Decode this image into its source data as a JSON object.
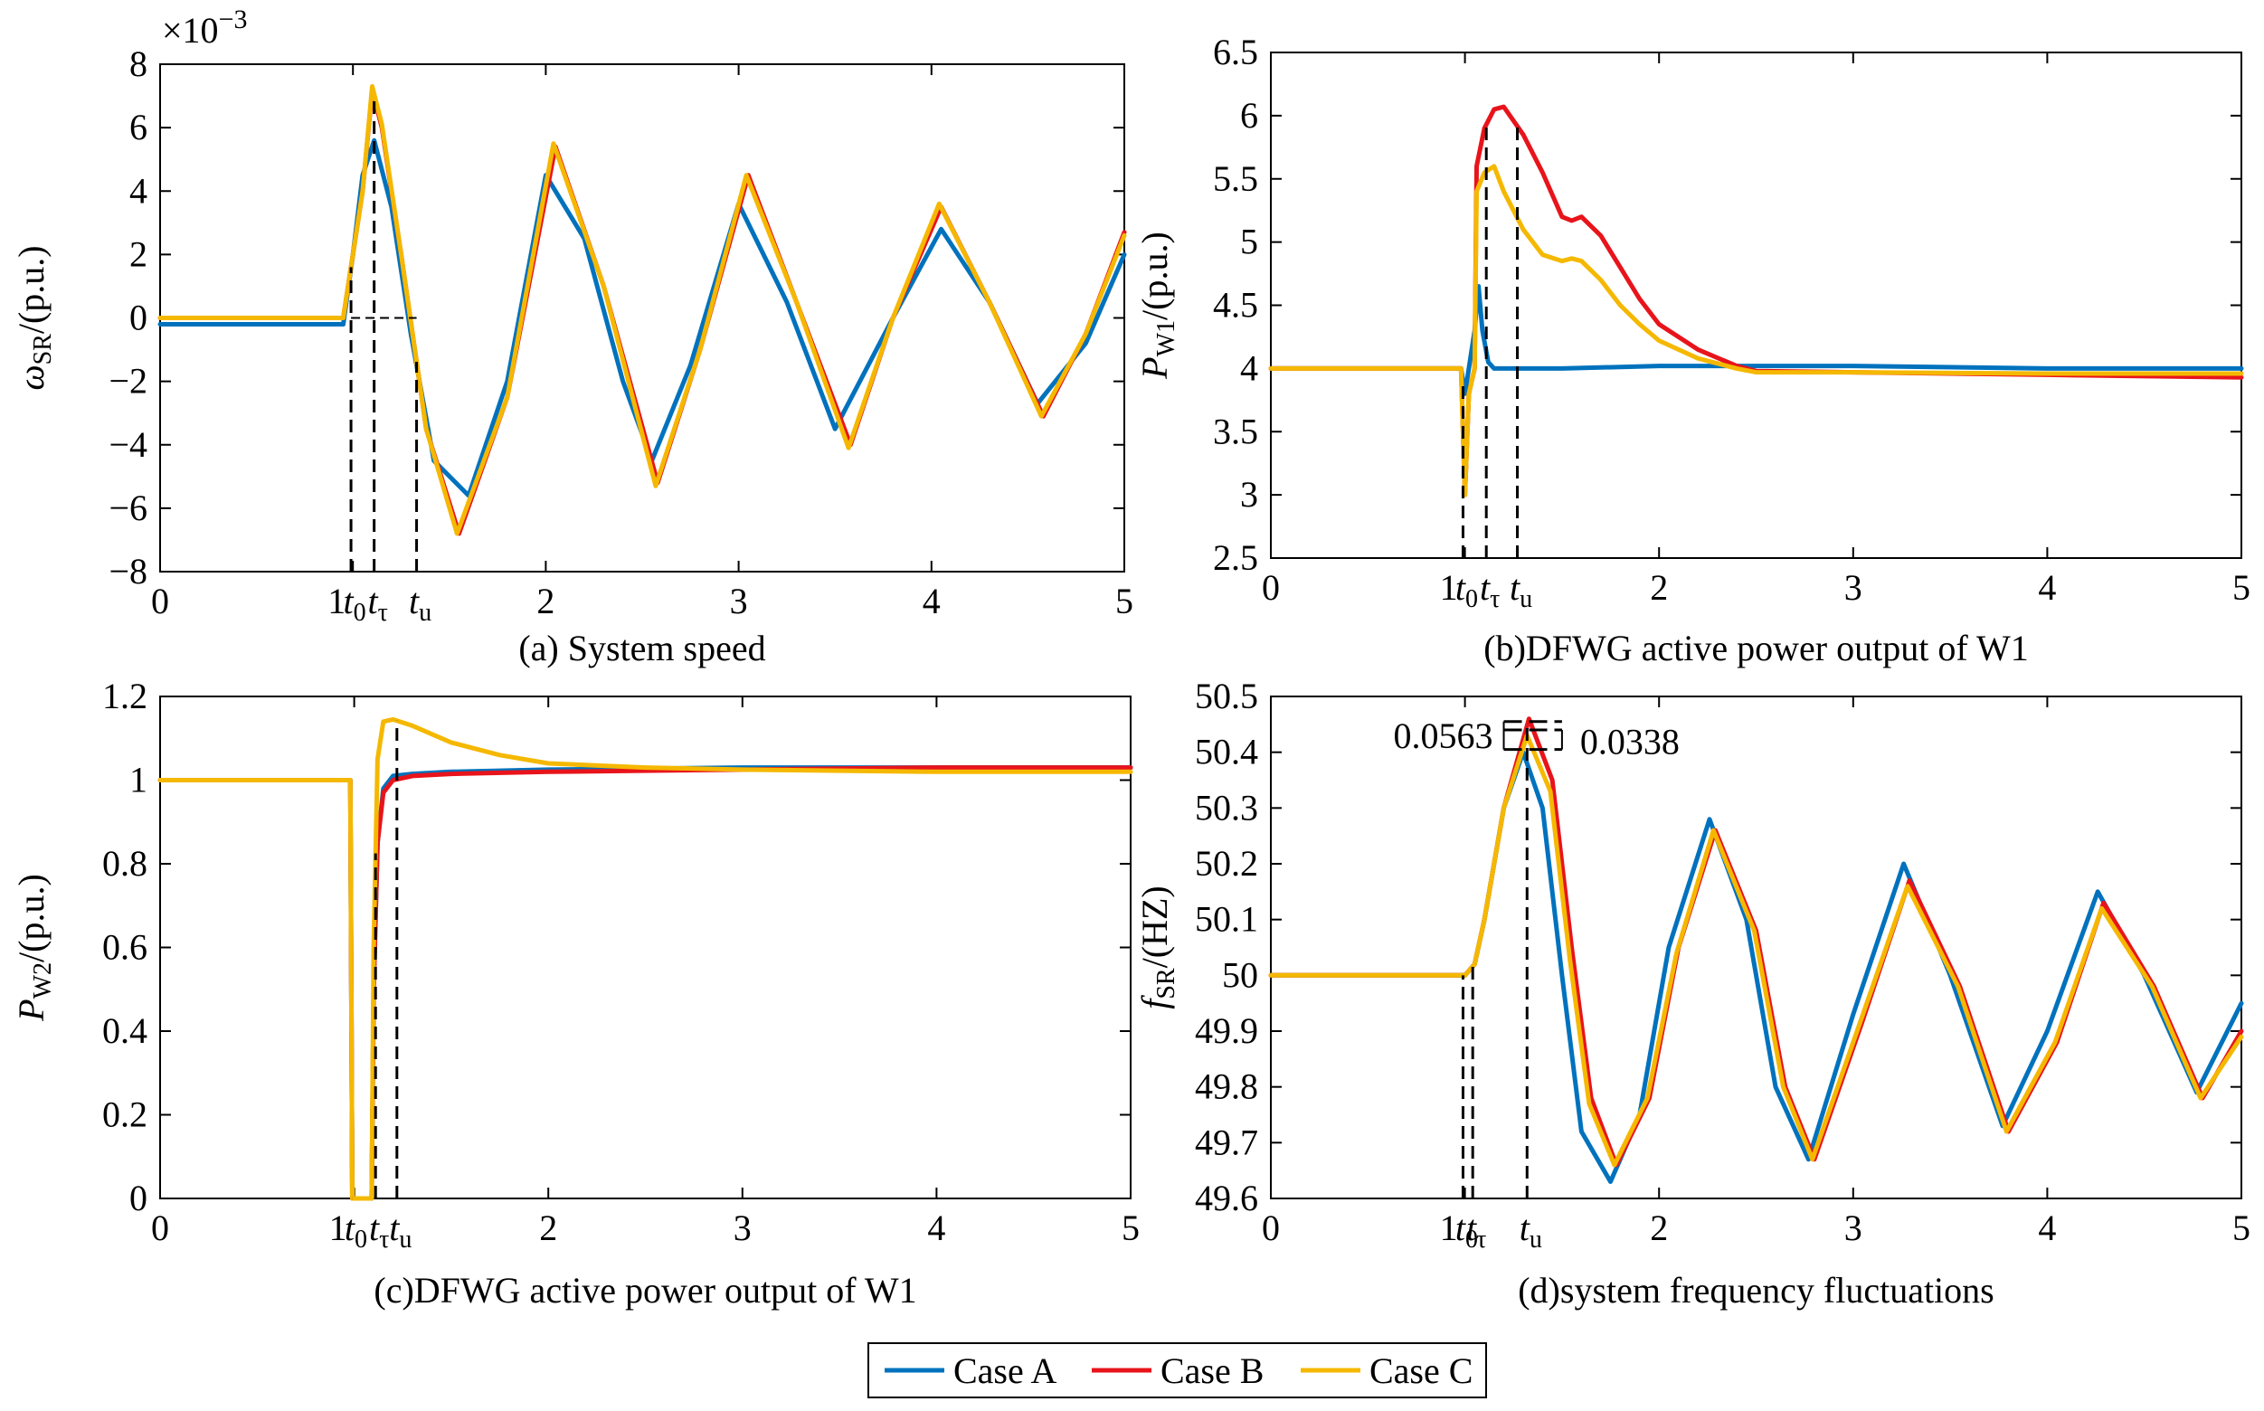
{
  "colors": {
    "case_a": "#0072BD",
    "case_b": "#E8141B",
    "case_c": "#F5B800"
  },
  "legend": {
    "placement": "bottom-center",
    "entries": [
      "Case A",
      "Case B",
      "Case C"
    ]
  },
  "chart_data": [
    {
      "type": "line",
      "caption": "(a) System speed",
      "ylabel": {
        "sym": "ω",
        "sub": "SR",
        "rest": "/(p.u.)"
      },
      "exponent_label": "×10",
      "exponent_power": "−3",
      "xlim": [
        0,
        5
      ],
      "ylim": [
        -8,
        8
      ],
      "xticks": [
        "0",
        "1",
        "2",
        "3",
        "4",
        "5"
      ],
      "yticks": [
        "8",
        "6",
        "4",
        "2",
        "0",
        "−2",
        "−4",
        "−6",
        "−8"
      ],
      "grid": false,
      "markers": [
        {
          "label": "t",
          "sub": "0",
          "x": 0.99
        },
        {
          "label": "t",
          "sub": "τ",
          "x": 1.11
        },
        {
          "label": "t",
          "sub": "u",
          "x": 1.33
        }
      ],
      "series": [
        {
          "name": "Case A",
          "color_key": "case_a",
          "x": [
            0,
            0.95,
            1.0,
            1.05,
            1.11,
            1.2,
            1.3,
            1.42,
            1.6,
            1.8,
            2.0,
            2.2,
            2.4,
            2.55,
            2.75,
            3.0,
            3.25,
            3.5,
            3.8,
            4.05,
            4.3,
            4.55,
            4.8,
            5.0
          ],
          "y": [
            -0.2,
            -0.2,
            2.0,
            4.5,
            5.6,
            3.5,
            -0.5,
            -4.5,
            -5.6,
            -2.0,
            4.5,
            2.5,
            -2.0,
            -4.5,
            -1.5,
            3.6,
            0.5,
            -3.5,
            0.0,
            2.8,
            0.5,
            -2.7,
            -0.8,
            2.0
          ]
        },
        {
          "name": "Case B",
          "color_key": "case_b",
          "x": [
            0,
            0.95,
            1.05,
            1.1,
            1.15,
            1.25,
            1.38,
            1.55,
            1.8,
            2.05,
            2.3,
            2.58,
            2.8,
            3.05,
            3.3,
            3.58,
            3.8,
            4.05,
            4.3,
            4.58,
            4.8,
            5.0
          ],
          "y": [
            0.0,
            0.0,
            4.0,
            7.2,
            6.0,
            2.0,
            -3.5,
            -6.8,
            -2.5,
            5.4,
            1.0,
            -5.2,
            -1.0,
            4.5,
            0.5,
            -4.0,
            0.0,
            3.5,
            0.5,
            -3.1,
            -0.5,
            2.7
          ]
        },
        {
          "name": "Case C",
          "color_key": "case_c",
          "x": [
            0,
            0.95,
            1.05,
            1.1,
            1.15,
            1.25,
            1.38,
            1.54,
            1.8,
            2.04,
            2.3,
            2.57,
            2.8,
            3.04,
            3.3,
            3.57,
            3.8,
            4.04,
            4.3,
            4.57,
            4.8,
            5.0
          ],
          "y": [
            0.0,
            0.0,
            4.0,
            7.3,
            6.1,
            2.0,
            -3.5,
            -6.8,
            -2.5,
            5.5,
            1.0,
            -5.3,
            -1.0,
            4.5,
            0.5,
            -4.1,
            0.0,
            3.6,
            0.5,
            -3.1,
            -0.5,
            2.6
          ]
        }
      ]
    },
    {
      "type": "line",
      "caption": "(b)DFWG active power output of W1",
      "ylabel": {
        "sym": "P",
        "sub": "W1",
        "rest": "/(p.u.)"
      },
      "xlim": [
        0,
        5
      ],
      "ylim": [
        2.5,
        6.5
      ],
      "xticks": [
        "0",
        "1",
        "2",
        "3",
        "4",
        "5"
      ],
      "yticks": [
        "6.5",
        "6",
        "5.5",
        "5",
        "4.5",
        "4",
        "3.5",
        "3",
        "2.5"
      ],
      "grid": false,
      "markers": [
        {
          "label": "t",
          "sub": "0",
          "x": 0.99
        },
        {
          "label": "t",
          "sub": "τ",
          "x": 1.11
        },
        {
          "label": "t",
          "sub": "u",
          "x": 1.27
        }
      ],
      "series": [
        {
          "name": "Case A",
          "color_key": "case_a",
          "x": [
            0,
            0.98,
            1.0,
            1.02,
            1.05,
            1.07,
            1.09,
            1.12,
            1.15,
            1.2,
            1.3,
            1.5,
            2.0,
            3.0,
            4.0,
            5.0
          ],
          "y": [
            4.0,
            4.0,
            3.8,
            4.0,
            4.3,
            4.65,
            4.3,
            4.05,
            4.0,
            4.0,
            4.0,
            4.0,
            4.02,
            4.02,
            4.0,
            4.0
          ]
        },
        {
          "name": "Case B",
          "color_key": "case_b",
          "x": [
            0,
            0.98,
            1.0,
            1.02,
            1.05,
            1.06,
            1.1,
            1.15,
            1.2,
            1.3,
            1.4,
            1.5,
            1.55,
            1.6,
            1.7,
            1.8,
            1.9,
            2.0,
            2.2,
            2.4,
            2.5,
            3.0,
            4.0,
            5.0
          ],
          "y": [
            4.0,
            4.0,
            3.0,
            3.8,
            4.0,
            5.6,
            5.9,
            6.05,
            6.07,
            5.85,
            5.55,
            5.2,
            5.17,
            5.2,
            5.05,
            4.8,
            4.55,
            4.35,
            4.15,
            4.02,
            3.98,
            3.97,
            3.95,
            3.93
          ]
        },
        {
          "name": "Case C",
          "color_key": "case_c",
          "x": [
            0,
            0.98,
            1.0,
            1.02,
            1.05,
            1.06,
            1.1,
            1.15,
            1.2,
            1.3,
            1.4,
            1.5,
            1.55,
            1.6,
            1.7,
            1.8,
            1.9,
            2.0,
            2.2,
            2.4,
            2.5,
            3.0,
            4.0,
            5.0
          ],
          "y": [
            4.0,
            4.0,
            3.0,
            3.8,
            4.0,
            5.4,
            5.55,
            5.6,
            5.4,
            5.1,
            4.9,
            4.85,
            4.87,
            4.85,
            4.7,
            4.5,
            4.35,
            4.22,
            4.08,
            4.0,
            3.97,
            3.97,
            3.96,
            3.96
          ]
        }
      ]
    },
    {
      "type": "line",
      "caption": "(c)DFWG active power output of W1",
      "ylabel": {
        "sym": "P",
        "sub": "W2",
        "rest": "/(p.u.)"
      },
      "xlim": [
        0,
        5
      ],
      "ylim": [
        0,
        1.2
      ],
      "xticks": [
        "0",
        "1",
        "2",
        "3",
        "4",
        "5"
      ],
      "yticks": [
        "1.2",
        "1",
        "0.8",
        "0.6",
        "0.4",
        "0.2",
        "0"
      ],
      "grid": false,
      "markers": [
        {
          "label": "t",
          "sub": "0",
          "x": 0.99
        },
        {
          "label": "t",
          "sub": "τ",
          "x": 1.11
        },
        {
          "label": "t",
          "sub": "u",
          "x": 1.22
        }
      ],
      "series": [
        {
          "name": "Case A",
          "color_key": "case_a",
          "x": [
            0,
            0.98,
            0.99,
            1.09,
            1.1,
            1.12,
            1.15,
            1.2,
            1.3,
            1.5,
            2.0,
            3.0,
            4.0,
            5.0
          ],
          "y": [
            1.0,
            1.0,
            0.0,
            0.0,
            0.5,
            0.85,
            0.98,
            1.01,
            1.015,
            1.02,
            1.025,
            1.03,
            1.03,
            1.03
          ]
        },
        {
          "name": "Case B",
          "color_key": "case_b",
          "x": [
            0,
            0.98,
            0.99,
            1.09,
            1.1,
            1.12,
            1.15,
            1.2,
            1.3,
            1.5,
            2.0,
            3.0,
            4.0,
            5.0
          ],
          "y": [
            1.0,
            1.0,
            0.0,
            0.0,
            0.5,
            0.85,
            0.97,
            1.0,
            1.01,
            1.015,
            1.02,
            1.025,
            1.03,
            1.03
          ]
        },
        {
          "name": "Case C",
          "color_key": "case_c",
          "x": [
            0,
            0.98,
            0.99,
            1.09,
            1.1,
            1.12,
            1.15,
            1.2,
            1.3,
            1.5,
            1.75,
            2.0,
            2.5,
            3.0,
            4.0,
            5.0
          ],
          "y": [
            1.0,
            1.0,
            0.0,
            0.0,
            0.6,
            1.05,
            1.14,
            1.145,
            1.13,
            1.09,
            1.06,
            1.04,
            1.03,
            1.025,
            1.02,
            1.02
          ]
        }
      ]
    },
    {
      "type": "line",
      "caption": "(d)system frequency fluctuations",
      "ylabel": {
        "sym": "f",
        "sub": "SR",
        "rest": "/(HZ)"
      },
      "xlim": [
        0,
        5
      ],
      "ylim": [
        49.6,
        50.5
      ],
      "xticks": [
        "0",
        "1",
        "2",
        "3",
        "4",
        "5"
      ],
      "yticks": [
        "50.5",
        "50.4",
        "50.3",
        "50.2",
        "50.1",
        "50",
        "49.9",
        "49.8",
        "49.7",
        "49.6"
      ],
      "grid": false,
      "markers": [
        {
          "label": "t",
          "sub": "0",
          "x": 0.99
        },
        {
          "label": "t",
          "sub": "τ",
          "x": 1.04
        },
        {
          "label": "t",
          "sub": "u",
          "x": 1.32
        }
      ],
      "annotations": [
        {
          "text": "0.0563",
          "side": "left"
        },
        {
          "text": "0.0338",
          "side": "right"
        }
      ],
      "series": [
        {
          "name": "Case A",
          "color_key": "case_a",
          "x": [
            0,
            1.0,
            1.05,
            1.1,
            1.2,
            1.3,
            1.4,
            1.5,
            1.6,
            1.75,
            1.9,
            2.05,
            2.26,
            2.45,
            2.6,
            2.77,
            3.0,
            3.26,
            3.5,
            3.77,
            4.0,
            4.26,
            4.5,
            4.77,
            5.0
          ],
          "y": [
            50.0,
            50.0,
            50.02,
            50.1,
            50.3,
            50.4,
            50.3,
            50.0,
            49.72,
            49.63,
            49.75,
            50.05,
            50.28,
            50.1,
            49.8,
            49.67,
            49.93,
            50.2,
            50.0,
            49.73,
            49.9,
            50.15,
            50.0,
            49.79,
            49.95
          ]
        },
        {
          "name": "Case B",
          "color_key": "case_b",
          "x": [
            0,
            1.0,
            1.05,
            1.1,
            1.2,
            1.33,
            1.45,
            1.55,
            1.65,
            1.78,
            1.95,
            2.1,
            2.29,
            2.5,
            2.65,
            2.8,
            3.05,
            3.29,
            3.55,
            3.8,
            4.05,
            4.29,
            4.55,
            4.8,
            5.0
          ],
          "y": [
            50.0,
            50.0,
            50.02,
            50.1,
            50.3,
            50.46,
            50.35,
            50.05,
            49.78,
            49.66,
            49.78,
            50.05,
            50.26,
            50.08,
            49.8,
            49.67,
            49.92,
            50.17,
            49.98,
            49.72,
            49.88,
            50.13,
            49.98,
            49.78,
            49.9
          ]
        },
        {
          "name": "Case C",
          "color_key": "case_c",
          "x": [
            0,
            1.0,
            1.05,
            1.1,
            1.2,
            1.32,
            1.44,
            1.54,
            1.64,
            1.77,
            1.94,
            2.09,
            2.28,
            2.49,
            2.64,
            2.79,
            3.04,
            3.28,
            3.54,
            3.79,
            4.04,
            4.28,
            4.54,
            4.79,
            5.0
          ],
          "y": [
            50.0,
            50.0,
            50.02,
            50.1,
            50.3,
            50.43,
            50.33,
            50.03,
            49.77,
            49.66,
            49.78,
            50.04,
            50.26,
            50.08,
            49.8,
            49.67,
            49.92,
            50.16,
            49.98,
            49.72,
            49.88,
            50.12,
            49.98,
            49.78,
            49.89
          ]
        }
      ]
    }
  ]
}
